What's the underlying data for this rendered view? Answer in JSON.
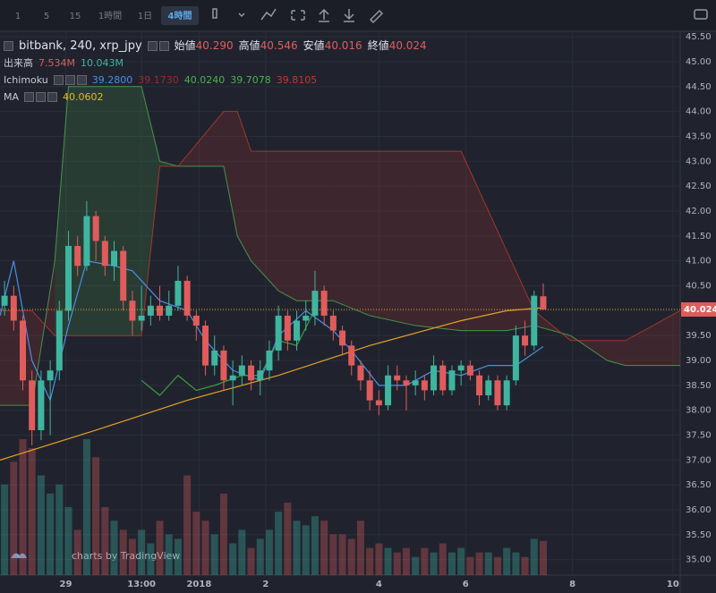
{
  "chart_data": {
    "type": "candlestick",
    "toolbar": {
      "intervals": [
        "1",
        "5",
        "15",
        "1時間",
        "1日",
        "4時間"
      ],
      "active": 5
    },
    "symbol": "bitbank, 240, xrp_jpy",
    "ohlc_legend": [
      {
        "label": "始値",
        "value": "40.290"
      },
      {
        "label": "高値",
        "value": "40.546"
      },
      {
        "label": "安値",
        "value": "40.016"
      },
      {
        "label": "終値",
        "value": "40.024"
      }
    ],
    "volume_legend": {
      "label": "出来高",
      "values": [
        "7.534M",
        "10.043M"
      ],
      "colors": [
        "#e05c5c",
        "#3fb5a0"
      ]
    },
    "ichimoku_legend": {
      "label": "Ichimoku",
      "values": [
        "39.2800",
        "39.1730",
        "40.0240",
        "39.7078",
        "39.8105"
      ],
      "colors": [
        "#4a8fe7",
        "#9c2a2a",
        "#4caf50",
        "#4caf50",
        "#c0392b"
      ]
    },
    "ma_legend": {
      "label": "MA",
      "values": [
        "40.0602"
      ],
      "colors": [
        "#e8b923"
      ]
    },
    "watermark": "charts by TradingView",
    "xlim": [
      -0.5,
      74
    ],
    "xticks": [
      {
        "value": 6.7,
        "label": "29"
      },
      {
        "value": 15,
        "label": "13:00"
      },
      {
        "value": 21.3,
        "label": "2018"
      },
      {
        "value": 28.6,
        "label": "2"
      },
      {
        "value": 41,
        "label": "4"
      },
      {
        "value": 50.5,
        "label": "6"
      },
      {
        "value": 62.2,
        "label": "8"
      },
      {
        "value": 73.2,
        "label": "10"
      }
    ],
    "ylim": [
      34.69,
      45.61
    ],
    "yticks": [
      {
        "value": 35,
        "label": "35.00"
      },
      {
        "value": 35.5,
        "label": "35.50"
      },
      {
        "value": 36,
        "label": "36.00"
      },
      {
        "value": 36.5,
        "label": "36.50"
      },
      {
        "value": 37,
        "label": "37.00"
      },
      {
        "value": 37.5,
        "label": "37.50"
      },
      {
        "value": 38,
        "label": "38.00"
      },
      {
        "value": 38.5,
        "label": "38.50"
      },
      {
        "value": 39,
        "label": "39.00"
      },
      {
        "value": 39.5,
        "label": "39.50"
      },
      {
        "value": 40,
        "label": "40.00"
      },
      {
        "value": 40.5,
        "label": "40.50"
      },
      {
        "value": 41,
        "label": "41.00"
      },
      {
        "value": 41.5,
        "label": "41.50"
      },
      {
        "value": 42,
        "label": "42.00"
      },
      {
        "value": 42.5,
        "label": "42.50"
      },
      {
        "value": 43,
        "label": "43.00"
      },
      {
        "value": 43.5,
        "label": "43.50"
      },
      {
        "value": 44,
        "label": "44.00"
      },
      {
        "value": 44.5,
        "label": "44.50"
      },
      {
        "value": 45,
        "label": "45.00"
      },
      {
        "value": 45.5,
        "label": "45.50"
      }
    ],
    "grid": true,
    "up_color": "#3fb5a0",
    "down_color": "#e05c5c",
    "candles": [
      [
        40.1,
        40.6,
        39.9,
        40.3
      ],
      [
        40.3,
        40.5,
        39.6,
        39.8
      ],
      [
        39.8,
        39.9,
        38.4,
        38.6
      ],
      [
        38.6,
        38.8,
        37.3,
        37.6
      ],
      [
        37.6,
        38.8,
        37.4,
        38.6
      ],
      [
        38.6,
        39.0,
        37.5,
        38.8
      ],
      [
        38.8,
        40.2,
        38.6,
        40.0
      ],
      [
        40.0,
        41.6,
        39.8,
        41.3
      ],
      [
        41.3,
        41.5,
        40.7,
        40.9
      ],
      [
        40.9,
        42.2,
        40.8,
        41.9
      ],
      [
        41.9,
        42.0,
        41.0,
        41.4
      ],
      [
        41.4,
        41.5,
        40.7,
        40.9
      ],
      [
        40.9,
        41.4,
        40.6,
        41.2
      ],
      [
        41.2,
        41.3,
        40.0,
        40.2
      ],
      [
        40.2,
        40.4,
        39.5,
        39.8
      ],
      [
        39.8,
        40.5,
        39.6,
        39.9
      ],
      [
        39.9,
        40.3,
        39.7,
        40.1
      ],
      [
        40.1,
        40.5,
        39.8,
        39.9
      ],
      [
        39.9,
        40.4,
        39.8,
        40.1
      ],
      [
        40.1,
        40.9,
        40.0,
        40.6
      ],
      [
        40.6,
        40.7,
        39.8,
        39.9
      ],
      [
        39.9,
        40.0,
        39.4,
        39.7
      ],
      [
        39.7,
        39.8,
        38.7,
        38.9
      ],
      [
        38.9,
        39.5,
        38.7,
        39.2
      ],
      [
        39.2,
        39.3,
        38.4,
        38.6
      ],
      [
        38.6,
        39.0,
        38.1,
        38.7
      ],
      [
        38.7,
        39.1,
        38.5,
        38.9
      ],
      [
        38.9,
        39.0,
        38.4,
        38.6
      ],
      [
        38.6,
        39.0,
        38.3,
        38.8
      ],
      [
        38.8,
        39.4,
        38.6,
        39.2
      ],
      [
        39.2,
        40.1,
        39.0,
        39.9
      ],
      [
        39.9,
        40.0,
        39.2,
        39.4
      ],
      [
        39.4,
        40.0,
        39.2,
        39.8
      ],
      [
        39.8,
        40.2,
        39.6,
        39.9
      ],
      [
        39.9,
        40.8,
        39.7,
        40.4
      ],
      [
        40.4,
        40.5,
        39.7,
        39.9
      ],
      [
        39.9,
        40.0,
        39.4,
        39.6
      ],
      [
        39.6,
        39.7,
        39.1,
        39.3
      ],
      [
        39.3,
        39.4,
        38.7,
        38.9
      ],
      [
        38.9,
        39.0,
        38.4,
        38.6
      ],
      [
        38.6,
        38.8,
        38.0,
        38.2
      ],
      [
        38.2,
        38.4,
        37.9,
        38.1
      ],
      [
        38.1,
        38.9,
        38.0,
        38.7
      ],
      [
        38.7,
        38.9,
        38.4,
        38.6
      ],
      [
        38.6,
        38.7,
        38.0,
        38.5
      ],
      [
        38.5,
        38.8,
        38.3,
        38.6
      ],
      [
        38.6,
        38.7,
        38.2,
        38.4
      ],
      [
        38.4,
        39.1,
        38.3,
        38.9
      ],
      [
        38.9,
        39.0,
        38.3,
        38.4
      ],
      [
        38.4,
        38.9,
        38.3,
        38.8
      ],
      [
        38.8,
        39.0,
        38.5,
        38.9
      ],
      [
        38.9,
        39.0,
        38.6,
        38.7
      ],
      [
        38.7,
        38.8,
        38.1,
        38.3
      ],
      [
        38.3,
        38.7,
        38.2,
        38.6
      ],
      [
        38.6,
        38.7,
        38.0,
        38.1
      ],
      [
        38.1,
        38.7,
        38.0,
        38.6
      ],
      [
        38.6,
        39.7,
        38.5,
        39.5
      ],
      [
        39.5,
        39.8,
        39.1,
        39.3
      ],
      [
        39.3,
        40.4,
        39.2,
        40.3
      ],
      [
        40.29,
        40.546,
        40.016,
        40.024
      ]
    ],
    "volume": [
      20,
      25,
      30,
      28,
      22,
      18,
      20,
      15,
      10,
      30,
      26,
      15,
      12,
      10,
      8,
      10,
      7,
      12,
      9,
      8,
      22,
      14,
      12,
      9,
      18,
      7,
      10,
      6,
      8,
      10,
      14,
      16,
      12,
      11,
      13,
      12,
      9,
      9,
      8,
      12,
      6,
      7,
      6,
      5,
      6,
      4,
      6,
      5,
      7,
      5,
      6,
      4,
      5,
      5,
      4,
      6,
      5,
      4,
      8,
      7.534
    ],
    "volume_lim": [
      0,
      120
    ],
    "cloud": {
      "x": [
        -0.5,
        3,
        5.5,
        7,
        12,
        15,
        17,
        19,
        24,
        25.5,
        27,
        30,
        32,
        36,
        40,
        45,
        50,
        55,
        58,
        62,
        66,
        68,
        74
      ],
      "span_a": [
        38.1,
        38.1,
        41.0,
        44.5,
        44.5,
        44.5,
        43.0,
        42.9,
        42.9,
        41.5,
        41.0,
        40.4,
        40.2,
        40.2,
        39.9,
        39.7,
        39.6,
        39.6,
        39.7,
        39.5,
        39.0,
        38.9,
        38.9
      ],
      "span_b": [
        40.0,
        40.0,
        39.5,
        39.5,
        39.5,
        39.5,
        42.9,
        42.9,
        44.0,
        44.0,
        43.2,
        43.2,
        43.2,
        43.2,
        43.2,
        43.2,
        43.2,
        41.2,
        40.0,
        39.4,
        39.4,
        39.4,
        40.0
      ],
      "a_color": "#4caf50",
      "b_color": "#c0392b"
    },
    "lines": [
      {
        "color": "#4a8fe7",
        "x": [
          -0.5,
          1,
          3,
          5,
          7,
          9,
          12,
          14,
          17,
          20,
          22,
          25,
          28,
          30,
          33,
          36,
          38,
          41,
          44,
          47,
          50,
          53,
          56,
          59
        ],
        "values": [
          39.9,
          41.0,
          39.0,
          38.2,
          39.7,
          41.0,
          40.9,
          40.8,
          40.2,
          40.0,
          39.4,
          38.8,
          38.6,
          39.5,
          40.0,
          39.6,
          39.2,
          38.5,
          38.5,
          38.8,
          38.7,
          38.9,
          38.9,
          39.28
        ]
      },
      {
        "color": "#3f9a3f",
        "x": [
          15,
          17,
          19,
          21,
          23,
          26,
          28,
          30,
          32,
          34
        ],
        "values": [
          38.6,
          38.3,
          38.7,
          38.4,
          38.5,
          38.7,
          38.7,
          39.4,
          39.3,
          40.024
        ]
      },
      {
        "color": "#e8a023",
        "x": [
          -0.5,
          10,
          20,
          30,
          40,
          50,
          55,
          59
        ],
        "values": [
          37.0,
          37.6,
          38.2,
          38.7,
          39.3,
          39.8,
          40.0,
          40.06
        ]
      }
    ]
  }
}
